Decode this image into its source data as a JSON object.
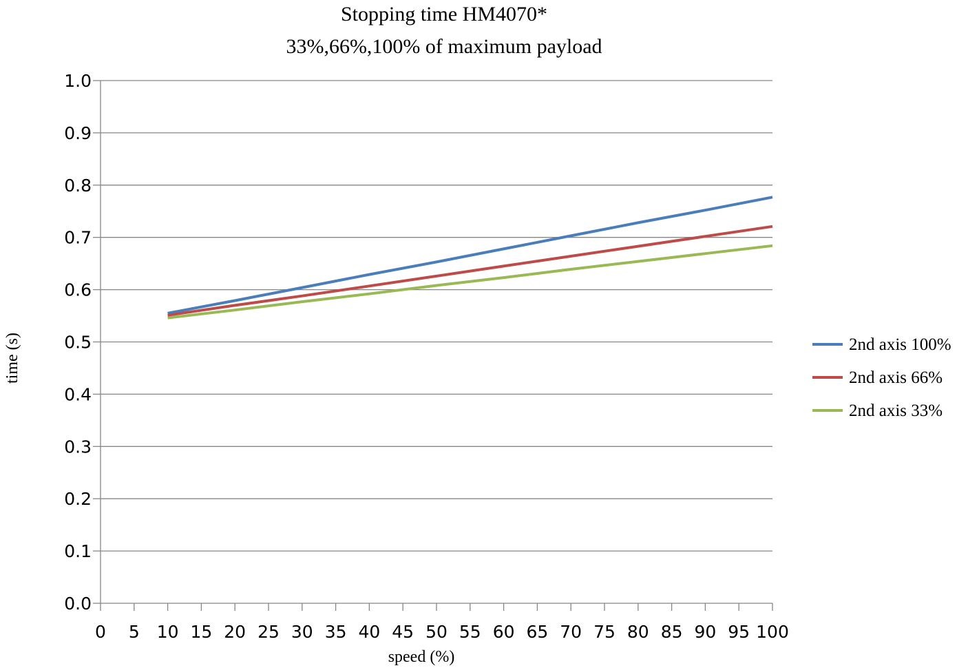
{
  "chart_data": {
    "type": "line",
    "title": "Stopping time HM4070*",
    "subtitle": "33%,66%,100% of maximum payload",
    "xlabel": "speed (%)",
    "ylabel": "time (s)",
    "xlim": [
      0,
      100
    ],
    "ylim": [
      0,
      1.0
    ],
    "x_ticks": [
      "0",
      "5",
      "10",
      "15",
      "20",
      "25",
      "30",
      "35",
      "40",
      "45",
      "50",
      "55",
      "60",
      "65",
      "70",
      "75",
      "80",
      "85",
      "90",
      "95",
      "100"
    ],
    "y_ticks": [
      "0.0",
      "0.1",
      "0.2",
      "0.3",
      "0.4",
      "0.5",
      "0.6",
      "0.7",
      "0.8",
      "0.9",
      "1.0"
    ],
    "grid": "horizontal",
    "legend_position": "right",
    "x": [
      10,
      20,
      30,
      40,
      50,
      60,
      70,
      80,
      90,
      100
    ],
    "series": [
      {
        "name": "2nd axis 100%",
        "color": "#4a7ebb",
        "values": [
          0.555,
          0.579,
          0.604,
          0.629,
          0.653,
          0.678,
          0.703,
          0.728,
          0.752,
          0.777
        ]
      },
      {
        "name": "2nd axis 66%",
        "color": "#be4b48",
        "values": [
          0.551,
          0.57,
          0.588,
          0.607,
          0.626,
          0.645,
          0.664,
          0.683,
          0.702,
          0.721
        ]
      },
      {
        "name": "2nd axis 33%",
        "color": "#98b954",
        "values": [
          0.546,
          0.561,
          0.577,
          0.592,
          0.608,
          0.623,
          0.639,
          0.654,
          0.669,
          0.684
        ]
      }
    ]
  }
}
